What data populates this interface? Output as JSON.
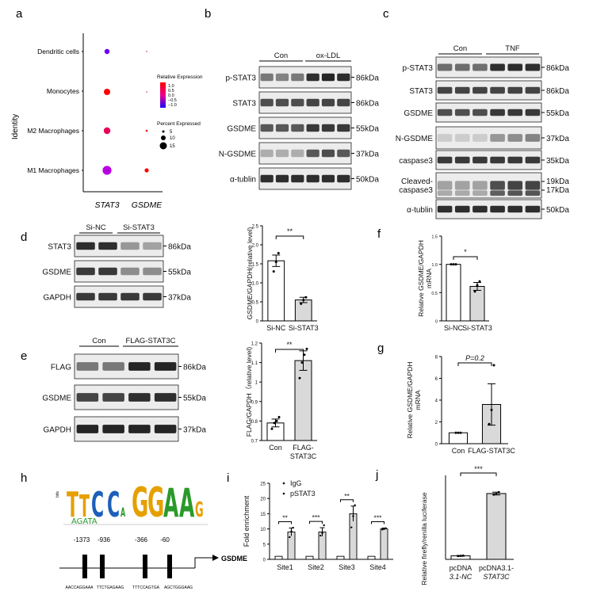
{
  "panel_letters": {
    "a": "a",
    "b": "b",
    "c": "c",
    "d": "d",
    "e": "e",
    "f": "f",
    "g": "g",
    "h": "h",
    "i": "i",
    "j": "j"
  },
  "panel_a": {
    "y_title": "Identity",
    "rows": [
      "Dendritic cells",
      "Monocytes",
      "M2 Macrophages",
      "M1 Macrophages"
    ],
    "cols": [
      "STAT3",
      "GSDME"
    ],
    "legend_expr_title": "Relative Expression",
    "expr_ticks": [
      "1.0",
      "0.5",
      "0.0",
      "−0.5",
      "−1.0"
    ],
    "legend_pct_title": "Percent Expressed",
    "pct_labels": [
      "5",
      "10",
      "15"
    ],
    "colors": {
      "high": "#ff0000",
      "mid": "#ee0090",
      "low": "#6a00ff"
    }
  },
  "panel_b": {
    "groups": [
      "Con",
      "ox-LDL"
    ],
    "rows": [
      {
        "label": "p-STAT3",
        "size": "86kDa"
      },
      {
        "label": "STAT3",
        "size": "86kDa"
      },
      {
        "label": "GSDME",
        "size": "55kDa"
      },
      {
        "label": "N-GSDME",
        "size": "37kDa"
      },
      {
        "label": "α-tublin",
        "size": "50kDa"
      }
    ]
  },
  "panel_c": {
    "groups": [
      "Con",
      "TNF"
    ],
    "rows": [
      {
        "label": "p-STAT3",
        "size": "86kDa"
      },
      {
        "label": "STAT3",
        "size": "86kDa"
      },
      {
        "label": "GSDME",
        "size": "55kDa"
      },
      {
        "label": "N-GSDME",
        "size": "37kDa"
      },
      {
        "label": "caspase3",
        "size": "35kDa"
      },
      {
        "label": "Cleaved-",
        "label2": "caspase3",
        "size": "19kDa",
        "size2": "17kDa"
      },
      {
        "label": "α-tublin",
        "size": "50kDa"
      }
    ]
  },
  "panel_d": {
    "groups": [
      "Si-NC",
      "Si-STAT3"
    ],
    "rows": [
      {
        "label": "STAT3",
        "size": "86kDa"
      },
      {
        "label": "GSDME",
        "size": "55kDa"
      },
      {
        "label": "GAPDH",
        "size": "37kDa"
      }
    ]
  },
  "panel_e": {
    "groups": [
      "Con",
      "FLAG-STAT3C"
    ],
    "rows": [
      {
        "label": "FLAG",
        "size": "86kDa"
      },
      {
        "label": "GSDME",
        "size": "55kDa"
      },
      {
        "label": "GAPDH",
        "size": "37kDa"
      }
    ]
  },
  "panel_h": {
    "motif_ylabel": "bits",
    "positions": [
      "-1373",
      "-936",
      "-366",
      "-60"
    ],
    "sequences": [
      "AACCAGGAAA",
      "TTCTGAGAAG",
      "TTTCCAGTGA",
      "AGCTGGGAAG"
    ],
    "gene": "GSDME"
  },
  "chart_data": [
    {
      "panel": "d",
      "type": "bar",
      "categories": [
        "Si-NC",
        "Si-STAT3"
      ],
      "values": [
        1.58,
        0.55
      ],
      "errors": [
        0.15,
        0.07
      ],
      "points": [
        [
          1.3,
          1.55,
          1.78
        ],
        [
          0.45,
          0.55,
          0.62
        ]
      ],
      "ylabel": "GSDME/GAPDH(relative level)",
      "ylim": [
        0,
        2.5
      ],
      "yticks": [
        0,
        0.5,
        1.0,
        1.5,
        2.0,
        2.5
      ],
      "ytick_labels": [
        "0",
        "0.5",
        "1.0",
        "1.5",
        "2.0",
        "2.5"
      ],
      "significance": "**",
      "fills": [
        "#ffffff",
        "#d9d9d9"
      ]
    },
    {
      "panel": "f",
      "type": "bar",
      "categories": [
        "Si-NC",
        "Si-STAT3"
      ],
      "values": [
        1.0,
        0.61
      ],
      "errors": [
        0.0,
        0.07
      ],
      "points": [
        [
          1.0,
          1.0,
          1.0
        ],
        [
          0.52,
          0.63,
          0.7
        ]
      ],
      "ylabel": "Relative GSDME/GAPDH",
      "ylabel2": "mRNA",
      "ylim": [
        0,
        1.5
      ],
      "yticks": [
        0,
        0.5,
        1.0,
        1.5
      ],
      "ytick_labels": [
        "0",
        "0.5",
        "1.0",
        "1.5"
      ],
      "significance": "*",
      "fills": [
        "#ffffff",
        "#d9d9d9"
      ]
    },
    {
      "panel": "e",
      "type": "bar",
      "categories": [
        "Con",
        "FLAG-STAT3C"
      ],
      "values": [
        0.79,
        1.11
      ],
      "errors": [
        0.02,
        0.05
      ],
      "points": [
        [
          0.76,
          0.79,
          0.8,
          0.82
        ],
        [
          1.02,
          1.1,
          1.14,
          1.17
        ]
      ],
      "ylabel": "FLAG/GAPDH（relative level)",
      "ylim": [
        0.7,
        1.2
      ],
      "yticks": [
        0.7,
        0.8,
        0.9,
        1.0,
        1.1,
        1.2
      ],
      "ytick_labels": [
        "0.7",
        "0.8",
        "0.9",
        "1",
        "1.1",
        "1.2"
      ],
      "significance": "**",
      "fills": [
        "#ffffff",
        "#d9d9d9"
      ]
    },
    {
      "panel": "g",
      "type": "bar",
      "categories": [
        "Con",
        "FLAG-STAT3C"
      ],
      "values": [
        1.0,
        3.6
      ],
      "errors": [
        0.0,
        1.9
      ],
      "points": [
        [
          1.0,
          1.0,
          1.0
        ],
        [
          1.8,
          3.1,
          7.2
        ]
      ],
      "ylabel": "Relative GSDME/GAPDH",
      "ylabel2": "mRNA",
      "ylim": [
        0,
        8
      ],
      "yticks": [
        0,
        2,
        4,
        6,
        8
      ],
      "ytick_labels": [
        "0",
        "2",
        "4",
        "6",
        "8"
      ],
      "significance": "P=0.2",
      "fills": [
        "#ffffff",
        "#d9d9d9"
      ]
    },
    {
      "panel": "i",
      "type": "bar",
      "categories": [
        "Site1",
        "Site2",
        "Site3",
        "Site4"
      ],
      "series": [
        {
          "name": "IgG",
          "values": [
            1.0,
            1.0,
            1.0,
            1.0
          ],
          "errors": [
            0.1,
            0.1,
            0.1,
            0.1
          ]
        },
        {
          "name": "pSTAT3",
          "values": [
            9.0,
            9.0,
            15.0,
            10.0
          ],
          "errors": [
            1.3,
            1.4,
            2.5,
            0.3
          ],
          "points": [
            [
              7.3,
              9.2,
              10.4
            ],
            [
              7.8,
              8.6,
              11.2
            ],
            [
              10.5,
              14.2,
              17.8
            ],
            [
              9.8,
              10.0,
              10.2
            ]
          ]
        }
      ],
      "ylabel": "Fold enrichment",
      "ylim": [
        0,
        25
      ],
      "yticks": [
        0,
        5,
        10,
        15,
        20,
        25
      ],
      "ytick_labels": [
        "0",
        "5",
        "10",
        "15",
        "20",
        "25"
      ],
      "significance": [
        "**",
        "***",
        "**",
        "***"
      ],
      "fills": [
        "#ffffff",
        "#d9d9d9"
      ]
    },
    {
      "panel": "j",
      "type": "bar",
      "categories": [
        "pcDNA 3.1-NC",
        "pcDNA3.1-STAT3C"
      ],
      "category_lines": [
        [
          "pcDNA",
          "3.1-NC"
        ],
        [
          "pcDNA3.1-",
          "STAT3C"
        ]
      ],
      "values": [
        2.5,
        47.0
      ],
      "errors": [
        0.3,
        1.0
      ],
      "points": [
        [
          2.3,
          2.5,
          2.7
        ],
        [
          46.2,
          47.0,
          48.1
        ]
      ],
      "ylabel": "Relative firefly/renilla luciferase",
      "ylim": [
        0,
        60
      ],
      "significance": "***",
      "fills": [
        "#ffffff",
        "#d9d9d9"
      ]
    }
  ]
}
